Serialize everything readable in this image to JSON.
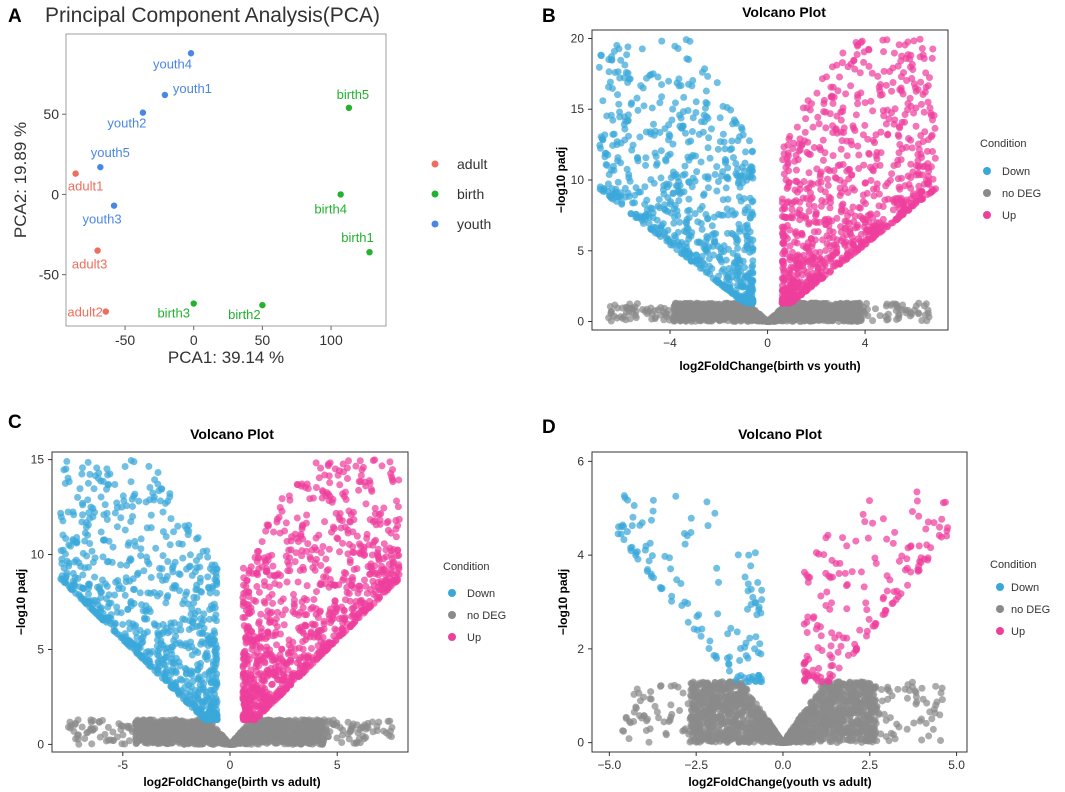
{
  "panels": [
    "A",
    "B",
    "C",
    "D"
  ],
  "colors": {
    "adult": "#f06c5c",
    "birth": "#22b22e",
    "youth": "#4a86e8",
    "down": "#3aa7d9",
    "nodeg": "#8a8a8a",
    "up": "#ef3f9c",
    "panel_border": "#333333",
    "panel_bg": "#ffffff"
  },
  "chart_data": [
    {
      "panel": "A",
      "type": "scatter",
      "title": "Principal Component Analysis(PCA)",
      "xlabel": "PCA1: 39.14 %",
      "ylabel": "PCA2: 19.89 %",
      "xlim": [
        -93,
        140
      ],
      "ylim": [
        -82,
        100
      ],
      "xticks": [
        -50,
        0,
        50,
        100
      ],
      "yticks": [
        -50,
        0,
        50
      ],
      "grid": false,
      "legend": {
        "position": "right",
        "entries": [
          "adult",
          "birth",
          "youth"
        ]
      },
      "points": [
        {
          "label": "youth4",
          "group": "youth",
          "x": -2,
          "y": 88
        },
        {
          "label": "youth1",
          "group": "youth",
          "x": -21,
          "y": 62
        },
        {
          "label": "youth2",
          "group": "youth",
          "x": -37,
          "y": 51
        },
        {
          "label": "youth5",
          "group": "youth",
          "x": -68,
          "y": 17
        },
        {
          "label": "youth3",
          "group": "youth",
          "x": -58,
          "y": -7
        },
        {
          "label": "adult1",
          "group": "adult",
          "x": -86,
          "y": 13
        },
        {
          "label": "adult3",
          "group": "adult",
          "x": -70,
          "y": -35
        },
        {
          "label": "adult2",
          "group": "adult",
          "x": -64,
          "y": -73
        },
        {
          "label": "birth5",
          "group": "birth",
          "x": 113,
          "y": 54
        },
        {
          "label": "birth4",
          "group": "birth",
          "x": 107,
          "y": 0
        },
        {
          "label": "birth1",
          "group": "birth",
          "x": 128,
          "y": -36
        },
        {
          "label": "birth3",
          "group": "birth",
          "x": 0,
          "y": -68
        },
        {
          "label": "birth2",
          "group": "birth",
          "x": 50,
          "y": -69
        }
      ]
    },
    {
      "panel": "B",
      "type": "scatter",
      "title": "Volcano Plot",
      "xlabel": "log2FoldChange(birth vs youth)",
      "ylabel": "−log10 padj",
      "xlim": [
        -7.2,
        7.4
      ],
      "ylim": [
        -0.6,
        20.6
      ],
      "xticks": [
        -4,
        0,
        4
      ],
      "xtick_labels": [
        "−4",
        "0",
        "4"
      ],
      "yticks": [
        0,
        5,
        10,
        15,
        20
      ],
      "legend": {
        "title": "Condition",
        "position": "right",
        "entries": [
          "Down",
          "no DEG",
          "Up"
        ]
      },
      "volcano": {
        "xmin": -7,
        "xmax": 7,
        "thr": 1.3,
        "ymax": 20,
        "v_slope": 1.6,
        "n_down": 700,
        "n_up": 900,
        "n_nodeg": 1600,
        "seed": 11
      }
    },
    {
      "panel": "C",
      "type": "scatter",
      "title": "Volcano Plot",
      "xlabel": "log2FoldChange(birth vs adult)",
      "ylabel": "−log10 padj",
      "xlim": [
        -8.3,
        8.3
      ],
      "ylim": [
        -0.4,
        15.4
      ],
      "xticks": [
        -5,
        0,
        5
      ],
      "yticks": [
        0,
        5,
        10,
        15
      ],
      "legend": {
        "title": "Condition",
        "position": "right",
        "entries": [
          "Down",
          "no DEG",
          "Up"
        ]
      },
      "volcano": {
        "xmin": -8,
        "xmax": 8,
        "thr": 1.3,
        "ymax": 15,
        "v_slope": 1.3,
        "n_down": 800,
        "n_up": 1000,
        "n_nodeg": 1600,
        "seed": 23
      }
    },
    {
      "panel": "D",
      "type": "scatter",
      "title": "Volcano Plot",
      "xlabel": "log2FoldChange(youth vs adult)",
      "ylabel": "−log10 padj",
      "xlim": [
        -5.5,
        5.3
      ],
      "ylim": [
        -0.2,
        6.2
      ],
      "xticks": [
        -5.0,
        -2.5,
        0.0,
        2.5,
        5.0
      ],
      "xtick_labels": [
        "−5.0",
        "−2.5",
        "0.0",
        "2.5",
        "5.0"
      ],
      "yticks": [
        0,
        2,
        4,
        6
      ],
      "legend": {
        "title": "Condition",
        "position": "right",
        "entries": [
          "Down",
          "no DEG",
          "Up"
        ]
      },
      "volcano": {
        "xmin": -4.8,
        "xmax": 4.9,
        "thr": 1.3,
        "ymax": 5.4,
        "v_slope": 1.1,
        "n_down": 130,
        "n_up": 170,
        "n_nodeg": 1800,
        "seed": 37
      }
    }
  ]
}
